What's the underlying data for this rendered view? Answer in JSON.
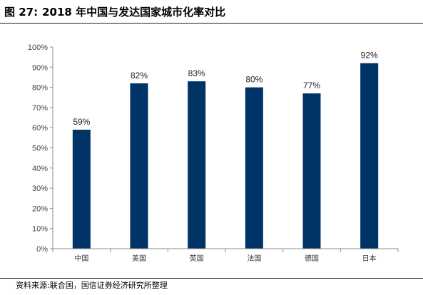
{
  "figure": {
    "number": "图 27:",
    "title": "2018 年中国与发达国家城市化率对比",
    "source": "资料来源:联合国，国信证券经济研究所整理"
  },
  "chart_data": {
    "type": "bar",
    "categories": [
      "中国",
      "美国",
      "英国",
      "法国",
      "德国",
      "日本"
    ],
    "values": [
      59,
      82,
      83,
      80,
      77,
      92
    ],
    "value_labels": [
      "59%",
      "82%",
      "83%",
      "80%",
      "77%",
      "92%"
    ],
    "ylim": [
      0,
      100
    ],
    "yticks": [
      0,
      10,
      20,
      30,
      40,
      50,
      60,
      70,
      80,
      90,
      100
    ],
    "ytick_labels": [
      "0%",
      "10%",
      "20%",
      "30%",
      "40%",
      "50%",
      "60%",
      "70%",
      "80%",
      "90%",
      "100%"
    ],
    "xlabel": "",
    "ylabel": "",
    "grid": false,
    "bar_color": "#003366",
    "axis_color": "#8c8c8c"
  }
}
